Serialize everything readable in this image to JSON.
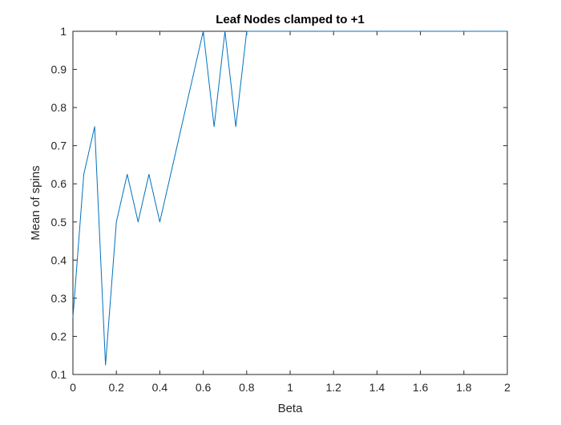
{
  "chart_data": {
    "type": "line",
    "title": "Leaf Nodes clamped to +1",
    "xlabel": "Beta",
    "ylabel": "Mean of spins",
    "xlim": [
      0,
      2
    ],
    "ylim": [
      0.1,
      1
    ],
    "xticks": [
      0,
      0.2,
      0.4,
      0.6,
      0.8,
      1,
      1.2,
      1.4,
      1.6,
      1.8,
      2
    ],
    "xtick_labels": [
      "0",
      "0.2",
      "0.4",
      "0.6",
      "0.8",
      "1",
      "1.2",
      "1.4",
      "1.6",
      "1.8",
      "2"
    ],
    "yticks": [
      0.1,
      0.2,
      0.3,
      0.4,
      0.5,
      0.6,
      0.7,
      0.8,
      0.9,
      1
    ],
    "ytick_labels": [
      "0.1",
      "0.2",
      "0.3",
      "0.4",
      "0.5",
      "0.6",
      "0.7",
      "0.8",
      "0.9",
      "1"
    ],
    "grid": false,
    "legend": "none",
    "series": [
      {
        "color": "#0072bd",
        "x": [
          0,
          0.05,
          0.1,
          0.15,
          0.2,
          0.25,
          0.3,
          0.35,
          0.4,
          0.45,
          0.5,
          0.55,
          0.6,
          0.65,
          0.7,
          0.75,
          0.8,
          0.85,
          0.9,
          0.95,
          1,
          1.05,
          1.1,
          1.15,
          1.2,
          1.25,
          1.3,
          1.35,
          1.4,
          1.45,
          1.5,
          1.55,
          1.6,
          1.65,
          1.7,
          1.75,
          1.8,
          1.85,
          1.9,
          1.95,
          2
        ],
        "y": [
          0.25,
          0.625,
          0.75,
          0.125,
          0.5,
          0.625,
          0.5,
          0.625,
          0.5,
          0.625,
          0.75,
          0.875,
          1,
          0.75,
          1,
          0.75,
          1,
          1,
          1,
          1,
          1,
          1,
          1,
          1,
          1,
          1,
          1,
          1,
          1,
          1,
          1,
          1,
          1,
          1,
          1,
          1,
          1,
          1,
          1,
          1,
          1
        ]
      }
    ]
  }
}
